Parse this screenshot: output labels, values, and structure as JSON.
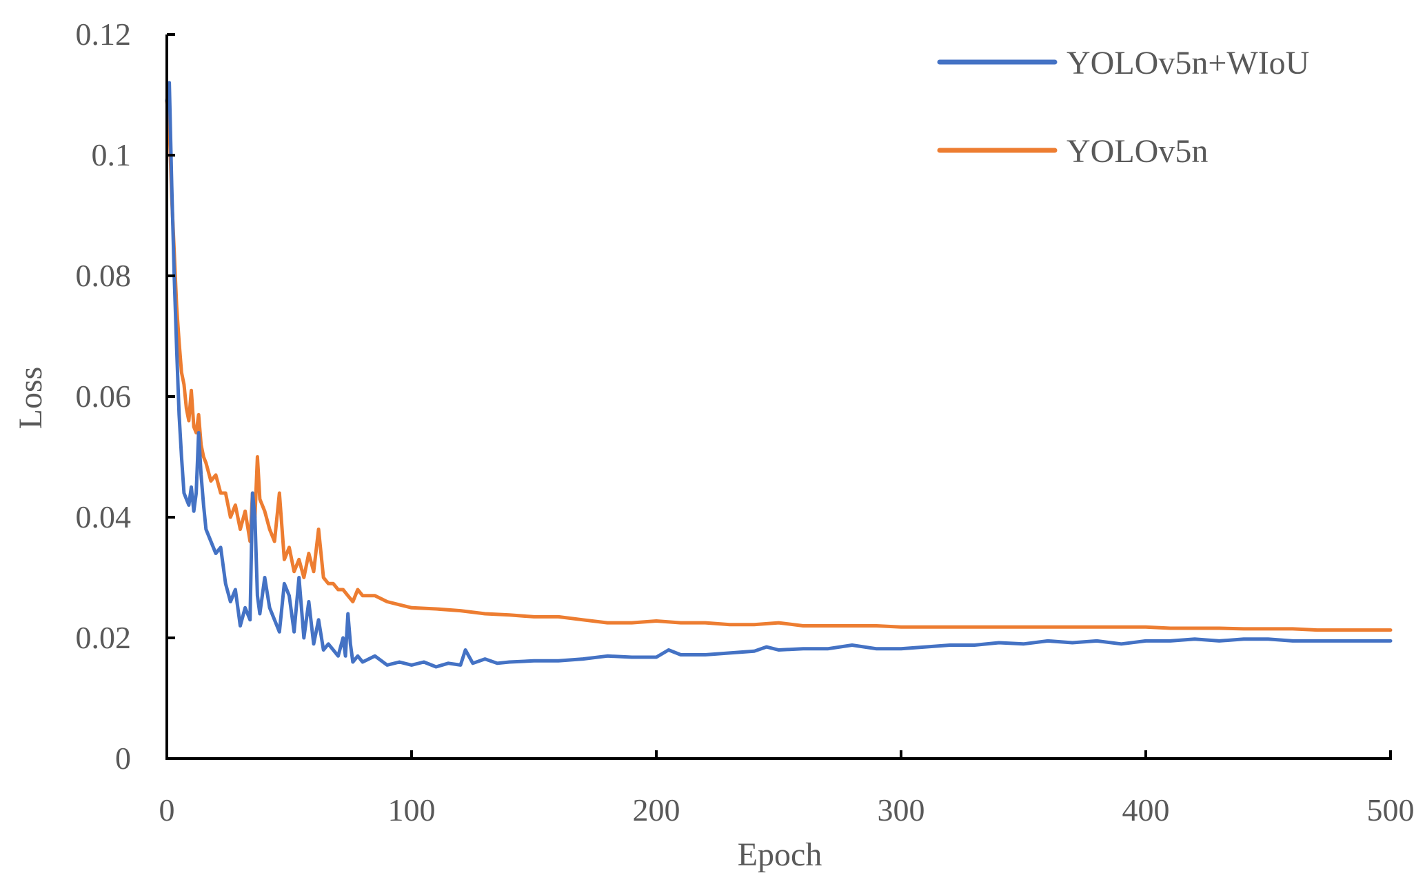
{
  "chart_data": {
    "type": "line",
    "title": "",
    "xlabel": "Epoch",
    "ylabel": "Loss",
    "xlim": [
      0,
      500
    ],
    "ylim": [
      0,
      0.12
    ],
    "x_ticks": [
      0,
      100,
      200,
      300,
      400,
      500
    ],
    "x_tick_labels": [
      "0",
      "100",
      "200",
      "300",
      "400",
      "500"
    ],
    "y_ticks": [
      0,
      0.02,
      0.04,
      0.06,
      0.08,
      0.1,
      0.12
    ],
    "y_tick_labels": [
      "0",
      "0.02",
      "0.04",
      "0.06",
      "0.08",
      "0.1",
      "0.12"
    ],
    "grid": false,
    "legend_position": "top-right",
    "series": [
      {
        "name": "YOLOv5n+WIoU",
        "color": "#4472C4",
        "x": [
          0,
          1,
          2,
          3,
          4,
          5,
          6,
          7,
          8,
          9,
          10,
          11,
          12,
          13,
          14,
          15,
          16,
          18,
          20,
          22,
          24,
          26,
          28,
          30,
          32,
          34,
          35,
          36,
          37,
          38,
          40,
          42,
          44,
          46,
          48,
          50,
          52,
          54,
          56,
          58,
          60,
          62,
          64,
          66,
          68,
          70,
          72,
          73,
          74,
          75,
          76,
          78,
          80,
          85,
          90,
          95,
          100,
          105,
          110,
          115,
          120,
          122,
          125,
          130,
          135,
          140,
          150,
          160,
          170,
          180,
          190,
          200,
          205,
          210,
          220,
          230,
          240,
          245,
          250,
          260,
          270,
          280,
          290,
          300,
          310,
          320,
          330,
          340,
          350,
          360,
          370,
          380,
          390,
          400,
          410,
          420,
          430,
          440,
          450,
          460,
          470,
          480,
          490,
          500
        ],
        "values": [
          0.109,
          0.112,
          0.095,
          0.08,
          0.068,
          0.057,
          0.05,
          0.044,
          0.043,
          0.042,
          0.045,
          0.041,
          0.044,
          0.054,
          0.047,
          0.042,
          0.038,
          0.036,
          0.034,
          0.035,
          0.029,
          0.026,
          0.028,
          0.022,
          0.025,
          0.023,
          0.044,
          0.04,
          0.027,
          0.024,
          0.03,
          0.025,
          0.023,
          0.021,
          0.029,
          0.027,
          0.021,
          0.03,
          0.02,
          0.026,
          0.019,
          0.023,
          0.018,
          0.019,
          0.018,
          0.017,
          0.02,
          0.017,
          0.024,
          0.019,
          0.016,
          0.017,
          0.016,
          0.017,
          0.0155,
          0.016,
          0.0155,
          0.016,
          0.0152,
          0.0158,
          0.0155,
          0.018,
          0.0158,
          0.0165,
          0.0158,
          0.016,
          0.0162,
          0.0162,
          0.0165,
          0.017,
          0.0168,
          0.0168,
          0.018,
          0.0172,
          0.0172,
          0.0175,
          0.0178,
          0.0185,
          0.018,
          0.0182,
          0.0182,
          0.0188,
          0.0182,
          0.0182,
          0.0185,
          0.0188,
          0.0188,
          0.0192,
          0.019,
          0.0195,
          0.0192,
          0.0195,
          0.019,
          0.0195,
          0.0195,
          0.0198,
          0.0195,
          0.0198,
          0.0198,
          0.0195,
          0.0195,
          0.0195,
          0.0195,
          0.0195
        ]
      },
      {
        "name": "YOLOv5n",
        "color": "#ED7D31",
        "x": [
          0,
          1,
          2,
          3,
          4,
          5,
          6,
          7,
          8,
          9,
          10,
          11,
          12,
          13,
          14,
          15,
          16,
          18,
          20,
          22,
          24,
          26,
          28,
          30,
          32,
          34,
          35,
          36,
          37,
          38,
          40,
          42,
          44,
          46,
          48,
          50,
          52,
          54,
          56,
          58,
          60,
          62,
          64,
          66,
          68,
          70,
          72,
          74,
          76,
          78,
          80,
          85,
          90,
          95,
          100,
          110,
          120,
          130,
          140,
          150,
          160,
          170,
          180,
          190,
          200,
          210,
          220,
          230,
          240,
          250,
          260,
          270,
          280,
          290,
          300,
          310,
          320,
          330,
          340,
          350,
          360,
          370,
          380,
          390,
          400,
          410,
          420,
          430,
          440,
          450,
          460,
          470,
          480,
          490,
          500
        ],
        "values": [
          0.109,
          0.105,
          0.093,
          0.084,
          0.075,
          0.069,
          0.064,
          0.062,
          0.058,
          0.056,
          0.061,
          0.055,
          0.054,
          0.057,
          0.052,
          0.05,
          0.049,
          0.046,
          0.047,
          0.044,
          0.044,
          0.04,
          0.042,
          0.038,
          0.041,
          0.036,
          0.044,
          0.04,
          0.05,
          0.043,
          0.041,
          0.038,
          0.036,
          0.044,
          0.033,
          0.035,
          0.031,
          0.033,
          0.03,
          0.034,
          0.031,
          0.038,
          0.03,
          0.029,
          0.029,
          0.028,
          0.028,
          0.027,
          0.026,
          0.028,
          0.027,
          0.027,
          0.026,
          0.0255,
          0.025,
          0.0248,
          0.0245,
          0.024,
          0.0238,
          0.0235,
          0.0235,
          0.023,
          0.0225,
          0.0225,
          0.0228,
          0.0225,
          0.0225,
          0.0222,
          0.0222,
          0.0225,
          0.022,
          0.022,
          0.022,
          0.022,
          0.0218,
          0.0218,
          0.0218,
          0.0218,
          0.0218,
          0.0218,
          0.0218,
          0.0218,
          0.0218,
          0.0218,
          0.0218,
          0.0216,
          0.0216,
          0.0216,
          0.0215,
          0.0215,
          0.0215,
          0.0213,
          0.0213,
          0.0213,
          0.0213
        ]
      }
    ]
  }
}
